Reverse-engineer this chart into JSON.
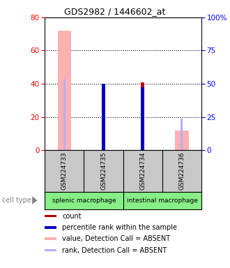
{
  "title": "GDS2982 / 1446602_at",
  "samples": [
    "GSM224733",
    "GSM224735",
    "GSM224734",
    "GSM224736"
  ],
  "value_absent": [
    72,
    0,
    0,
    12
  ],
  "rank_absent": [
    43,
    0,
    0,
    19
  ],
  "count": [
    0,
    39,
    41,
    0
  ],
  "percentile_rank": [
    0,
    40,
    38,
    0
  ],
  "ylim_left": [
    0,
    80
  ],
  "ylim_right": [
    0,
    100
  ],
  "yticks_left": [
    0,
    20,
    40,
    60,
    80
  ],
  "yticks_right": [
    0,
    25,
    50,
    75,
    100
  ],
  "color_value_absent": "#ffb0b0",
  "color_rank_absent": "#b0b0ff",
  "color_count": "#bb0000",
  "color_percentile": "#0000bb",
  "color_gray_bg": "#c8c8c8",
  "color_cell_type_bg": "#88ee88",
  "cell_type_labels": [
    "splenic macrophage",
    "intestinal macrophage"
  ],
  "legend_items": [
    [
      "#bb0000",
      "count"
    ],
    [
      "#0000bb",
      "percentile rank within the sample"
    ],
    [
      "#ffb0b0",
      "value, Detection Call = ABSENT"
    ],
    [
      "#b0b0ff",
      "rank, Detection Call = ABSENT"
    ]
  ]
}
